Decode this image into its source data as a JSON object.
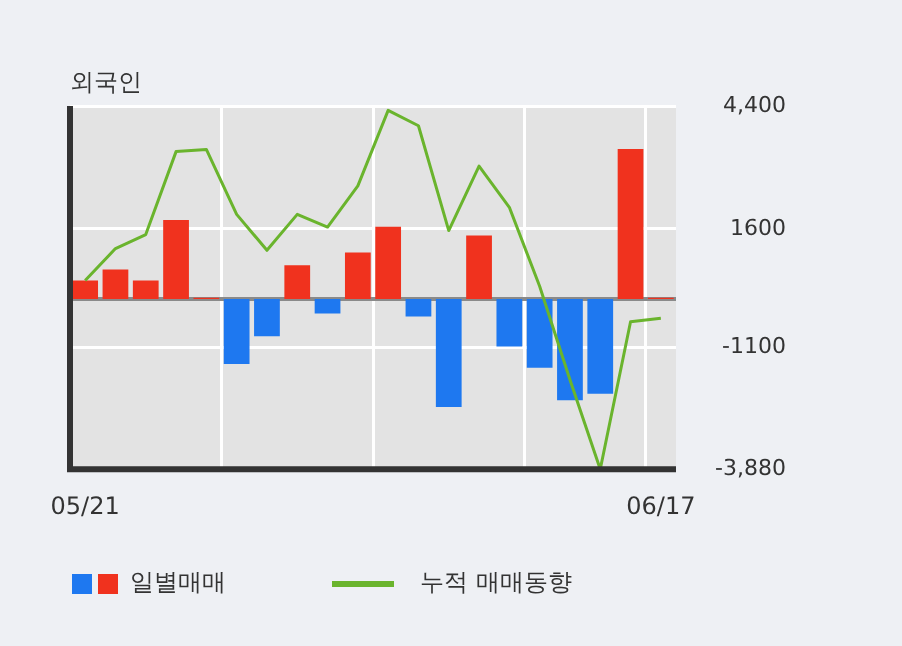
{
  "chart_data": {
    "type": "bar",
    "title": "외국인",
    "categories": [
      "05/21",
      null,
      null,
      null,
      null,
      null,
      null,
      null,
      null,
      null,
      null,
      null,
      null,
      null,
      null,
      null,
      null,
      null,
      null,
      "06/17"
    ],
    "series": [
      {
        "name": "일별매매",
        "values": [
          420,
          670,
          420,
          1800,
          30,
          -1480,
          -850,
          770,
          -330,
          1060,
          1650,
          -400,
          -2460,
          1450,
          -1080,
          -1570,
          -2310,
          -2160,
          3420,
          30
        ],
        "colors": [
          "#f0321e",
          "#f0321e",
          "#f0321e",
          "#f0321e",
          "#f0321e",
          "#1e78f0",
          "#1e78f0",
          "#f0321e",
          "#1e78f0",
          "#f0321e",
          "#f0321e",
          "#1e78f0",
          "#1e78f0",
          "#f0321e",
          "#1e78f0",
          "#1e78f0",
          "#1e78f0",
          "#1e78f0",
          "#f0321e",
          "#f0321e"
        ]
      },
      {
        "name": "누적 매매동향",
        "type": "line",
        "color": "#6ab42d",
        "values": [
          420,
          1150,
          1470,
          3360,
          3410,
          1930,
          1110,
          1930,
          1640,
          2580,
          4300,
          3950,
          1560,
          3030,
          2090,
          290,
          -1840,
          -3880,
          -520,
          -440
        ]
      }
    ],
    "ylim": [
      -3880,
      4400
    ],
    "yticks": [
      {
        "value": 4400,
        "label": "4,400"
      },
      1600,
      -1100,
      {
        "value": -3880,
        "label": "-3,880"
      }
    ],
    "ref_lines": [
      {
        "axis": "y",
        "value": 0,
        "color": "#8a8a8a"
      }
    ],
    "grid": true,
    "legend": "bottom",
    "marker": "none",
    "line_style": "solid"
  }
}
